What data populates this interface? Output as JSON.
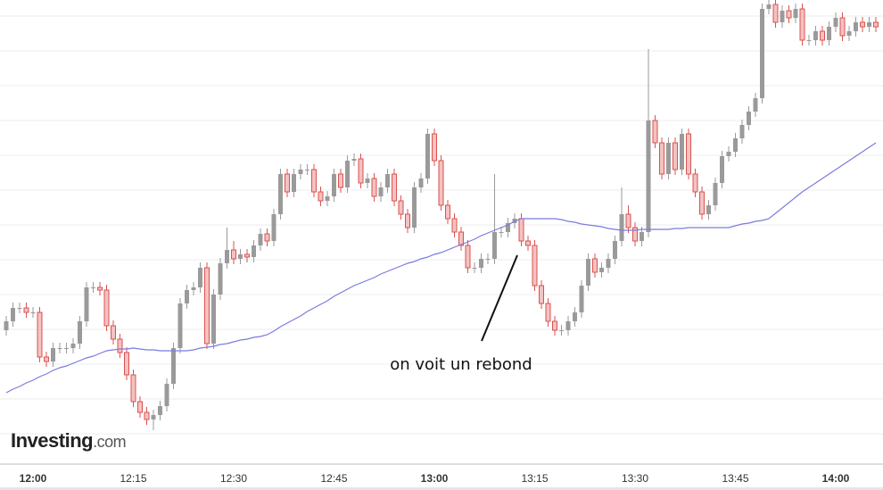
{
  "chart_data": {
    "type": "candlestick",
    "brand": "Investing",
    "brand_suffix": ".com",
    "annotation": "on voit un rebond",
    "ylim": [
      0,
      520
    ],
    "grid": true,
    "up_color": "#9a9a9a",
    "down_color": "#f4c2c2",
    "down_edge_color": "#d9534f",
    "categories": [
      null,
      null,
      null,
      null,
      "12:00",
      null,
      null,
      null,
      null,
      null,
      null,
      null,
      null,
      null,
      null,
      null,
      null,
      null,
      null,
      "12:15",
      null,
      null,
      null,
      null,
      null,
      null,
      null,
      null,
      null,
      null,
      null,
      null,
      null,
      null,
      "12:30",
      null,
      null,
      null,
      null,
      null,
      null,
      null,
      null,
      null,
      null,
      null,
      null,
      null,
      null,
      "12:45",
      null,
      null,
      null,
      null,
      null,
      null,
      null,
      null,
      null,
      null,
      null,
      null,
      null,
      null,
      "13:00",
      null,
      null,
      null,
      null,
      null,
      null,
      null,
      null,
      null,
      null,
      null,
      null,
      null,
      null,
      "13:15",
      null,
      null,
      null,
      null,
      null,
      null,
      null,
      null,
      null,
      null,
      null,
      null,
      null,
      null,
      "13:30",
      null,
      null,
      null,
      null,
      null,
      null,
      null,
      null,
      null,
      null,
      null,
      null,
      null,
      null,
      "13:45",
      null,
      null,
      null,
      null,
      null,
      null,
      null,
      null,
      null,
      null,
      null,
      null,
      null,
      null,
      "14:00",
      null,
      null,
      null,
      null,
      null,
      null
    ],
    "open": [
      150,
      160,
      175,
      175,
      170,
      170,
      120,
      115,
      130,
      130,
      130,
      135,
      160,
      198,
      198,
      195,
      155,
      140,
      125,
      100,
      70,
      58,
      50,
      55,
      65,
      90,
      130,
      180,
      195,
      198,
      220,
      135,
      190,
      225,
      240,
      230,
      235,
      232,
      245,
      258,
      250,
      280,
      325,
      305,
      325,
      330,
      330,
      305,
      295,
      300,
      325,
      310,
      340,
      342,
      315,
      320,
      300,
      310,
      325,
      295,
      280,
      265,
      310,
      320,
      370,
      340,
      290,
      275,
      260,
      245,
      220,
      220,
      230,
      230,
      260,
      260,
      270,
      275,
      250,
      245,
      200,
      180,
      160,
      150,
      150,
      160,
      170,
      200,
      230,
      215,
      220,
      230,
      250,
      280,
      265,
      250,
      260,
      385,
      360,
      325,
      360,
      330,
      370,
      325,
      305,
      280,
      290,
      315,
      345,
      350,
      365,
      380,
      395,
      410,
      510,
      515,
      495,
      508,
      500,
      510,
      475,
      475,
      485,
      475,
      490,
      500,
      480,
      485,
      495,
      490,
      495
    ],
    "high": [
      166,
      181,
      181,
      181,
      176,
      176,
      126,
      136,
      136,
      136,
      141,
      166,
      204,
      204,
      204,
      201,
      161,
      146,
      131,
      106,
      76,
      64,
      61,
      71,
      96,
      136,
      186,
      201,
      204,
      226,
      226,
      196,
      231,
      265,
      250,
      241,
      241,
      251,
      264,
      264,
      286,
      331,
      331,
      331,
      336,
      336,
      336,
      311,
      306,
      331,
      331,
      346,
      348,
      348,
      326,
      326,
      316,
      331,
      331,
      301,
      286,
      316,
      326,
      376,
      376,
      346,
      296,
      281,
      266,
      251,
      226,
      236,
      236,
      325,
      266,
      276,
      281,
      281,
      256,
      251,
      206,
      186,
      166,
      156,
      166,
      176,
      206,
      236,
      236,
      226,
      236,
      256,
      310,
      290,
      271,
      266,
      465,
      391,
      366,
      366,
      366,
      376,
      376,
      331,
      311,
      296,
      321,
      351,
      356,
      371,
      386,
      401,
      416,
      516,
      521,
      521,
      514,
      514,
      516,
      516,
      481,
      491,
      491,
      496,
      506,
      506,
      491,
      501,
      501,
      501,
      501
    ],
    "low": [
      144,
      154,
      169,
      164,
      164,
      114,
      109,
      109,
      124,
      124,
      124,
      129,
      154,
      192,
      189,
      149,
      134,
      119,
      94,
      64,
      52,
      44,
      38,
      49,
      59,
      84,
      124,
      174,
      189,
      192,
      129,
      129,
      184,
      219,
      224,
      224,
      226,
      226,
      239,
      244,
      244,
      274,
      299,
      299,
      319,
      324,
      299,
      289,
      289,
      294,
      304,
      304,
      334,
      309,
      309,
      294,
      294,
      304,
      289,
      274,
      259,
      259,
      304,
      314,
      334,
      284,
      269,
      254,
      239,
      214,
      214,
      214,
      224,
      224,
      254,
      254,
      264,
      244,
      239,
      194,
      174,
      154,
      144,
      144,
      144,
      154,
      164,
      194,
      209,
      209,
      214,
      224,
      244,
      259,
      244,
      244,
      254,
      354,
      319,
      319,
      324,
      324,
      319,
      299,
      274,
      274,
      284,
      309,
      339,
      344,
      359,
      374,
      389,
      404,
      504,
      489,
      489,
      494,
      494,
      469,
      469,
      469,
      469,
      469,
      484,
      474,
      474,
      479,
      484,
      484,
      484
    ],
    "close": [
      160,
      175,
      175,
      170,
      170,
      120,
      115,
      130,
      130,
      130,
      135,
      160,
      198,
      198,
      195,
      155,
      140,
      125,
      100,
      70,
      58,
      50,
      55,
      65,
      90,
      130,
      180,
      195,
      198,
      220,
      135,
      190,
      225,
      240,
      230,
      235,
      232,
      245,
      258,
      250,
      280,
      325,
      305,
      325,
      330,
      330,
      305,
      295,
      300,
      325,
      310,
      340,
      342,
      315,
      320,
      300,
      310,
      325,
      295,
      280,
      265,
      310,
      320,
      370,
      340,
      290,
      275,
      260,
      245,
      220,
      220,
      230,
      230,
      260,
      260,
      270,
      275,
      250,
      245,
      200,
      180,
      160,
      150,
      150,
      160,
      170,
      200,
      230,
      215,
      220,
      230,
      250,
      280,
      265,
      250,
      260,
      385,
      360,
      325,
      360,
      330,
      370,
      325,
      305,
      280,
      290,
      315,
      345,
      350,
      365,
      380,
      395,
      410,
      510,
      515,
      495,
      508,
      500,
      510,
      475,
      475,
      485,
      475,
      490,
      500,
      480,
      485,
      495,
      490,
      495,
      490
    ],
    "moving_average": {
      "color": "#7b7be0",
      "values": [
        80,
        84,
        87,
        91,
        94,
        98,
        101,
        105,
        108,
        110,
        113,
        116,
        119,
        121,
        124,
        127,
        128,
        129,
        129,
        130,
        129,
        128,
        128,
        127,
        127,
        127,
        127,
        127,
        128,
        130,
        131,
        132,
        134,
        135,
        137,
        139,
        140,
        142,
        143,
        145,
        149,
        154,
        158,
        162,
        166,
        171,
        175,
        179,
        183,
        188,
        192,
        196,
        200,
        203,
        206,
        209,
        213,
        216,
        219,
        222,
        225,
        227,
        230,
        232,
        235,
        237,
        240,
        243,
        246,
        249,
        252,
        256,
        259,
        262,
        265,
        268,
        272,
        275,
        275,
        275,
        275,
        275,
        275,
        274,
        272,
        271,
        269,
        268,
        267,
        266,
        264,
        263,
        262,
        262,
        262,
        263,
        263,
        263,
        263,
        263,
        264,
        264,
        265,
        265,
        265,
        265,
        265,
        265,
        265,
        267,
        269,
        270,
        272,
        273,
        275,
        281,
        287,
        293,
        299,
        305,
        310,
        315,
        320,
        325,
        330,
        335,
        340,
        345,
        350,
        355,
        360
      ]
    }
  }
}
